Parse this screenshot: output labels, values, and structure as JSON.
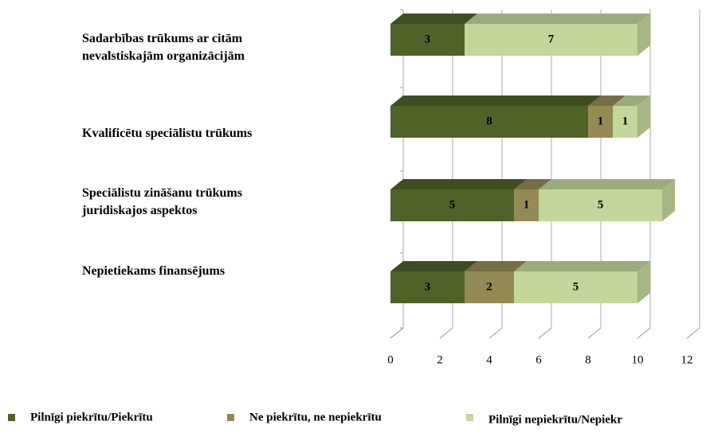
{
  "chart_data": {
    "type": "bar",
    "orientation": "horizontal",
    "stacked": true,
    "three_d": true,
    "categories": [
      "Sadarbības trūkums ar citām nevalstiskajām organizācijām",
      "Kvalificētu speciālistu trūkums",
      "Speciālistu zināšanu trūkums juridiskajos aspektos",
      "Nepietiekams finansējums"
    ],
    "series": [
      {
        "name": "Pilnīgi piekrītu/Piekrītu",
        "color": "#4f6228",
        "values": [
          3,
          8,
          5,
          3
        ]
      },
      {
        "name": "Ne piekrītu, ne nepiekrītu",
        "color": "#948a54",
        "values": [
          null,
          1,
          1,
          2
        ]
      },
      {
        "name": "Pilnīgi nepiekrītu/Nepiekr",
        "color": "#c3d69b",
        "values": [
          7,
          1,
          5,
          5
        ]
      }
    ],
    "xlim": [
      0,
      12
    ],
    "xticks": [
      0,
      2,
      4,
      6,
      8,
      10,
      12
    ],
    "grid": true,
    "legend": "bottom"
  }
}
